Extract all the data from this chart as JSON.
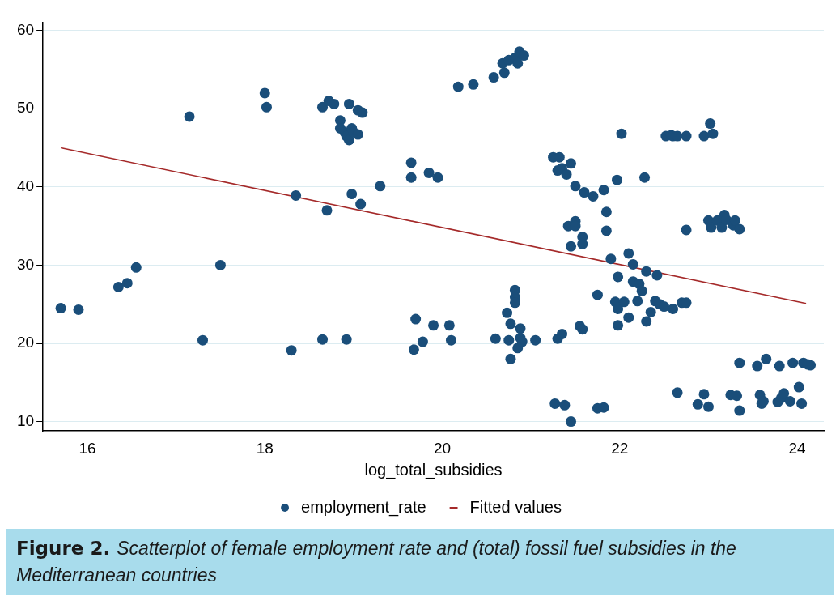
{
  "chart_data": {
    "type": "scatter",
    "xlabel": "log_total_subsidies",
    "xlim": [
      15.5,
      24.3
    ],
    "xticks": [
      16,
      18,
      20,
      22,
      24
    ],
    "ylim": [
      8.8,
      61
    ],
    "yticks": [
      10,
      20,
      30,
      40,
      50,
      60
    ],
    "grid": "y",
    "legend": "bottom",
    "marker": "circle",
    "annotations": [
      "Figure 2.",
      "Scatterplot of female employment rate and (total) fossil fuel subsidies in the Mediterranean countries"
    ],
    "series": [
      {
        "name": "employment_rate",
        "color": "#1a4e7a",
        "x": [
          15.7,
          15.9,
          16.35,
          16.45,
          16.55,
          17.15,
          17.3,
          17.5,
          18.0,
          18.02,
          18.3,
          18.35,
          18.65,
          18.7,
          18.65,
          18.72,
          18.78,
          18.85,
          18.85,
          18.9,
          18.92,
          18.95,
          18.98,
          19.0,
          18.95,
          19.05,
          19.1,
          19.05,
          18.92,
          18.98,
          19.08,
          19.3,
          19.65,
          19.65,
          19.68,
          19.7,
          19.78,
          19.85,
          19.9,
          19.95,
          20.08,
          20.1,
          20.18,
          20.35,
          20.58,
          20.7,
          20.68,
          20.75,
          20.82,
          20.87,
          20.85,
          20.92,
          20.6,
          20.73,
          20.77,
          20.75,
          20.77,
          20.82,
          20.82,
          20.82,
          20.85,
          20.88,
          20.88,
          20.9,
          21.05,
          21.25,
          21.3,
          21.32,
          21.35,
          21.4,
          21.45,
          21.27,
          21.3,
          21.35,
          21.38,
          21.42,
          21.45,
          21.5,
          21.5,
          21.45,
          21.5,
          21.55,
          21.58,
          21.58,
          21.58,
          21.6,
          21.7,
          21.75,
          21.75,
          21.82,
          21.82,
          21.85,
          21.85,
          21.9,
          21.95,
          21.97,
          21.98,
          21.98,
          21.98,
          22.02,
          22.05,
          22.1,
          22.1,
          22.15,
          22.15,
          22.2,
          22.22,
          22.25,
          22.28,
          22.3,
          22.3,
          22.35,
          22.4,
          22.42,
          22.45,
          22.5,
          22.52,
          22.58,
          22.6,
          22.65,
          22.6,
          22.65,
          22.7,
          22.75,
          22.75,
          22.75,
          22.88,
          22.95,
          22.95,
          23.0,
          23.0,
          23.02,
          23.05,
          23.03,
          23.1,
          23.15,
          23.18,
          23.2,
          23.25,
          23.28,
          23.3,
          23.35,
          23.32,
          23.35,
          23.35,
          23.55,
          23.58,
          23.6,
          23.62,
          23.65,
          23.78,
          23.8,
          23.82,
          23.85,
          23.92,
          23.95,
          24.02,
          24.05,
          24.07,
          24.15,
          24.12
        ],
        "values": [
          24.5,
          24.3,
          27.2,
          27.7,
          29.7,
          49,
          20.4,
          30,
          52,
          50.2,
          19.1,
          38.9,
          20.5,
          37,
          50.2,
          51,
          50.6,
          48.5,
          47.5,
          47,
          46.5,
          46,
          47.5,
          47,
          50.6,
          49.8,
          49.5,
          46.7,
          20.5,
          39.1,
          37.8,
          40.1,
          43.1,
          41.2,
          19.2,
          23.1,
          20.2,
          41.8,
          22.3,
          41.2,
          22.3,
          20.4,
          52.8,
          53.1,
          54,
          54.6,
          55.8,
          56.2,
          56.5,
          57.3,
          55.8,
          56.8,
          20.6,
          23.9,
          22.5,
          20.4,
          18,
          26.8,
          25.9,
          25.2,
          19.4,
          20.7,
          21.9,
          20.2,
          20.4,
          43.8,
          42.1,
          43.8,
          42.4,
          41.6,
          43,
          12.3,
          20.6,
          21.2,
          12.1,
          35,
          32.4,
          35.6,
          35,
          10,
          40.1,
          22.2,
          21.8,
          33.6,
          32.7,
          39.3,
          38.8,
          26.2,
          11.7,
          11.8,
          39.6,
          36.8,
          34.4,
          30.8,
          25.3,
          40.9,
          28.5,
          24.4,
          22.3,
          46.8,
          25.3,
          31.5,
          23.3,
          30.1,
          27.9,
          25.4,
          27.6,
          26.7,
          41.2,
          22.8,
          29.2,
          24,
          25.4,
          28.7,
          25,
          24.7,
          46.5,
          46.6,
          46.5,
          46.5,
          24.4,
          13.7,
          25.2,
          25.2,
          34.5,
          46.5,
          12.2,
          13.5,
          46.5,
          11.9,
          35.7,
          48.1,
          46.8,
          34.8,
          35.7,
          34.8,
          36.4,
          35.8,
          13.4,
          35.1,
          35.7,
          34.6,
          13.3,
          11.4,
          17.5,
          17.1,
          13.4,
          12.3,
          12.6,
          18,
          12.5,
          17.1,
          13,
          13.6,
          12.6,
          17.5,
          14.4,
          12.3,
          17.5,
          17.2,
          17.3
        ]
      },
      {
        "name": "Fitted values",
        "type": "line",
        "color": "#a52a2a",
        "marker": "none",
        "line_style": "solid",
        "x": [
          15.7,
          24.1
        ],
        "values": [
          45,
          25.1
        ]
      }
    ]
  }
}
